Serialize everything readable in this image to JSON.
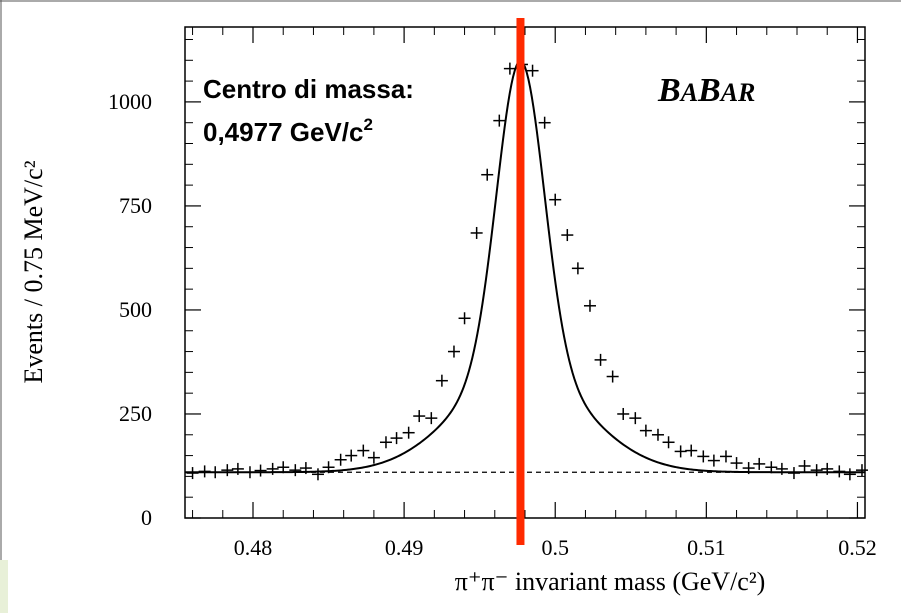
{
  "chart_data": {
    "type": "scatter",
    "title": "",
    "xlabel": "π⁺π⁻ invariant mass (GeV/c²)",
    "ylabel": "Events / 0.75 MeV/c²",
    "xlim": [
      0.4755,
      0.5205
    ],
    "ylim": [
      0,
      1180
    ],
    "x_ticks": [
      0.48,
      0.49,
      0.5,
      0.51,
      0.52
    ],
    "x_tick_labels": [
      "0.48",
      "0.49",
      "0.5",
      "0.51",
      "0.52"
    ],
    "y_ticks": [
      0,
      250,
      500,
      750,
      1000
    ],
    "y_tick_labels": [
      "0",
      "250",
      "500",
      "750",
      "1000"
    ],
    "grid": false,
    "series": [
      {
        "kind": "data-points",
        "x": [
          0.476,
          0.4768,
          0.4775,
          0.4783,
          0.479,
          0.4798,
          0.4805,
          0.4813,
          0.482,
          0.4828,
          0.4835,
          0.4843,
          0.485,
          0.4858,
          0.4865,
          0.4873,
          0.488,
          0.4888,
          0.4895,
          0.4903,
          0.491,
          0.4918,
          0.4925,
          0.4933,
          0.494,
          0.4948,
          0.4955,
          0.4963,
          0.497,
          0.4978,
          0.4985,
          0.4993,
          0.5,
          0.5008,
          0.5015,
          0.5023,
          0.503,
          0.5038,
          0.5045,
          0.5053,
          0.506,
          0.5068,
          0.5075,
          0.5083,
          0.509,
          0.5098,
          0.5105,
          0.5113,
          0.512,
          0.5128,
          0.5135,
          0.5143,
          0.515,
          0.5158,
          0.5165,
          0.5173,
          0.518,
          0.5188,
          0.5195,
          0.5203
        ],
        "y": [
          108,
          112,
          110,
          115,
          118,
          110,
          114,
          118,
          122,
          115,
          120,
          105,
          122,
          140,
          150,
          162,
          145,
          182,
          192,
          205,
          245,
          240,
          330,
          400,
          480,
          685,
          825,
          955,
          1080,
          1090,
          1075,
          950,
          765,
          680,
          600,
          510,
          380,
          340,
          250,
          240,
          210,
          200,
          182,
          160,
          162,
          148,
          138,
          148,
          132,
          120,
          130,
          122,
          118,
          108,
          125,
          115,
          118,
          112,
          105,
          115
        ]
      },
      {
        "kind": "fit-curve",
        "peak_x": 0.4977,
        "peak_y": 1098,
        "background": 110
      },
      {
        "kind": "background",
        "line": "dashed",
        "value": 110
      }
    ],
    "marker": {
      "x": 0.4977,
      "color": "#ff2a00"
    },
    "annotation": [
      "Centro di massa:",
      "0,4977 GeV/c²"
    ],
    "logo": "BABAR"
  }
}
